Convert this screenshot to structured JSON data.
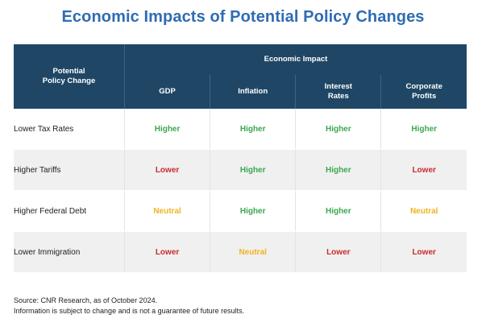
{
  "title": "Economic Impacts of Potential Policy Changes",
  "table": {
    "policy_header_line1": "Potential",
    "policy_header_line2": "Policy Change",
    "group_header": "Economic Impact",
    "columns": [
      {
        "line1": "GDP",
        "line2": ""
      },
      {
        "line1": "Inflation",
        "line2": ""
      },
      {
        "line1": "Interest",
        "line2": "Rates"
      },
      {
        "line1": "Corporate",
        "line2": "Profits"
      }
    ],
    "rows": [
      {
        "policy": "Lower Tax Rates",
        "values": [
          "Higher",
          "Higher",
          "Higher",
          "Higher"
        ]
      },
      {
        "policy": "Higher Tariffs",
        "values": [
          "Lower",
          "Higher",
          "Higher",
          "Lower"
        ]
      },
      {
        "policy": "Higher Federal Debt",
        "values": [
          "Neutral",
          "Higher",
          "Higher",
          "Neutral"
        ]
      },
      {
        "policy": "Lower Immigration",
        "values": [
          "Lower",
          "Neutral",
          "Lower",
          "Lower"
        ]
      }
    ]
  },
  "status_colors": {
    "Higher": "#3aa84f",
    "Lower": "#cc2b2b",
    "Neutral": "#f0b41f"
  },
  "footnote": {
    "source": "Source: CNR Research, as of October 2024.",
    "disclaimer": "Information is subject to change and is not a guarantee of future results."
  }
}
